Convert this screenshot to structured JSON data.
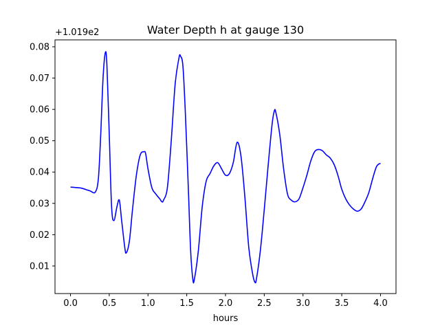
{
  "chart_data": {
    "type": "line",
    "title": "Water Depth h at gauge 130",
    "xlabel": "hours",
    "ylabel": "",
    "y_offset_label": "+1.019e2",
    "xlim": [
      -0.2,
      4.2
    ],
    "ylim": [
      0.0012,
      0.0822
    ],
    "x_ticks": [
      0.0,
      0.5,
      1.0,
      1.5,
      2.0,
      2.5,
      3.0,
      3.5,
      4.0
    ],
    "x_tick_labels": [
      "0.0",
      "0.5",
      "1.0",
      "1.5",
      "2.0",
      "2.5",
      "3.0",
      "3.5",
      "4.0"
    ],
    "y_ticks": [
      0.01,
      0.02,
      0.03,
      0.04,
      0.05,
      0.06,
      0.07,
      0.08
    ],
    "y_tick_labels": [
      "0.01",
      "0.02",
      "0.03",
      "0.04",
      "0.05",
      "0.06",
      "0.07",
      "0.08"
    ],
    "grid": false,
    "series": [
      {
        "color": "#0000ff",
        "x": [
          0.0,
          0.1,
          0.15,
          0.25,
          0.32,
          0.36,
          0.39,
          0.42,
          0.45,
          0.47,
          0.5,
          0.53,
          0.56,
          0.6,
          0.63,
          0.66,
          0.7,
          0.72,
          0.76,
          0.8,
          0.85,
          0.9,
          0.95,
          0.97,
          1.0,
          1.05,
          1.1,
          1.15,
          1.18,
          1.2,
          1.25,
          1.3,
          1.35,
          1.4,
          1.42,
          1.45,
          1.48,
          1.52,
          1.55,
          1.58,
          1.6,
          1.65,
          1.7,
          1.75,
          1.8,
          1.85,
          1.9,
          1.95,
          2.0,
          2.05,
          2.1,
          2.15,
          2.2,
          2.25,
          2.3,
          2.35,
          2.38,
          2.4,
          2.45,
          2.5,
          2.55,
          2.6,
          2.63,
          2.65,
          2.7,
          2.75,
          2.8,
          2.85,
          2.9,
          2.95,
          3.0,
          3.05,
          3.1,
          3.15,
          3.2,
          3.25,
          3.3,
          3.35,
          3.4,
          3.45,
          3.5,
          3.55,
          3.6,
          3.65,
          3.7,
          3.75,
          3.8,
          3.85,
          3.9,
          3.95,
          4.0
        ],
        "y": [
          0.0352,
          0.035,
          0.0348,
          0.034,
          0.0336,
          0.038,
          0.052,
          0.07,
          0.0782,
          0.074,
          0.052,
          0.029,
          0.0245,
          0.029,
          0.031,
          0.0245,
          0.016,
          0.0142,
          0.018,
          0.028,
          0.039,
          0.0455,
          0.0465,
          0.0458,
          0.041,
          0.035,
          0.033,
          0.0315,
          0.0305,
          0.031,
          0.035,
          0.05,
          0.068,
          0.0765,
          0.077,
          0.074,
          0.06,
          0.035,
          0.015,
          0.0055,
          0.006,
          0.015,
          0.029,
          0.037,
          0.0395,
          0.042,
          0.043,
          0.041,
          0.039,
          0.0395,
          0.043,
          0.0495,
          0.045,
          0.032,
          0.016,
          0.0075,
          0.0048,
          0.006,
          0.015,
          0.028,
          0.042,
          0.055,
          0.0595,
          0.059,
          0.052,
          0.041,
          0.033,
          0.031,
          0.0305,
          0.0315,
          0.035,
          0.039,
          0.0435,
          0.0465,
          0.0472,
          0.0468,
          0.0455,
          0.0445,
          0.0425,
          0.039,
          0.0345,
          0.0315,
          0.0295,
          0.0282,
          0.0275,
          0.0282,
          0.0305,
          0.0335,
          0.038,
          0.0418,
          0.0428
        ]
      }
    ]
  }
}
